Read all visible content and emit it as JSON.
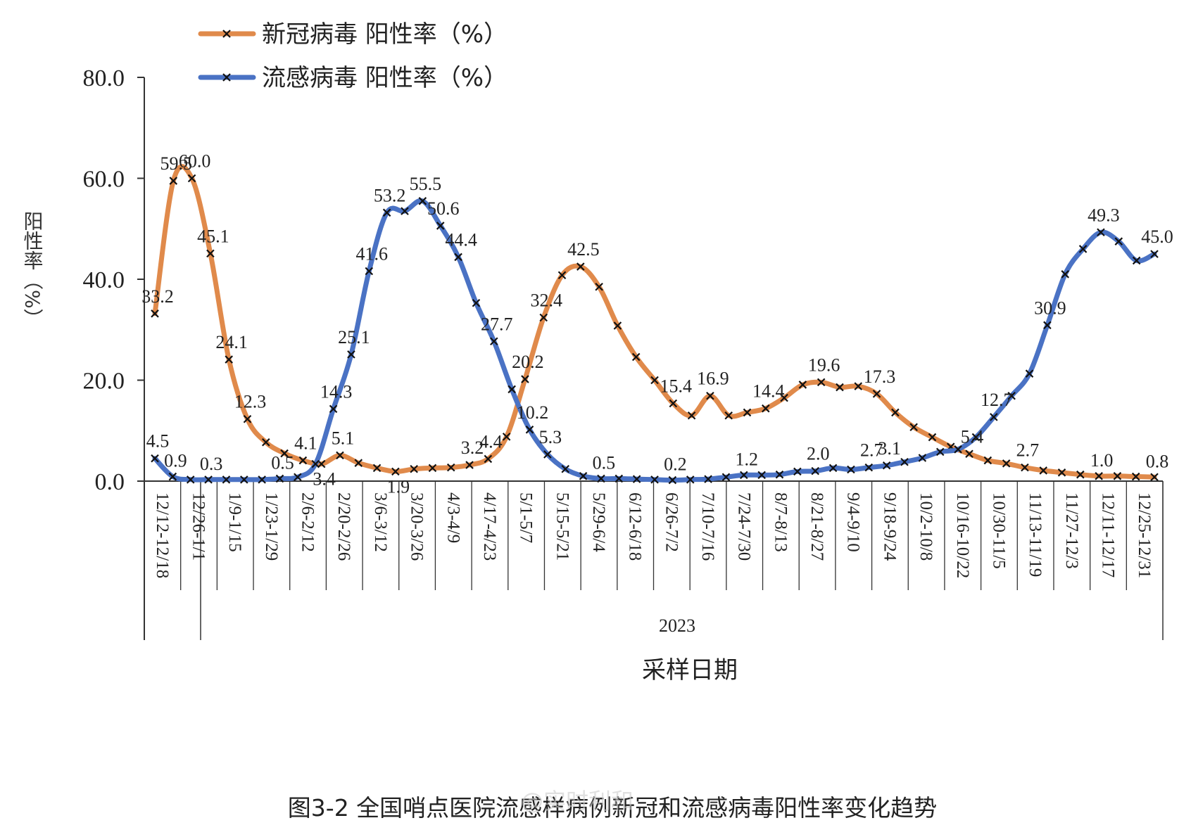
{
  "chart_data": {
    "type": "line",
    "title": "",
    "xlabel": "采样日期",
    "ylabel": "阳性率（%）",
    "year_label": "2023",
    "ylim": [
      0,
      80
    ],
    "yticks": [
      "0.0",
      "20.0",
      "40.0",
      "60.0",
      "80.0"
    ],
    "grid": false,
    "legend_position": "top-left",
    "x_tick_labels": [
      "12/12-12/18",
      "12/26-1/1",
      "1/9-1/15",
      "1/23-1/29",
      "2/6-2/12",
      "2/20-2/26",
      "3/6-3/12",
      "3/20-3/26",
      "4/3-4/9",
      "4/17-4/23",
      "5/1-5/7",
      "5/15-5/21",
      "5/29-6/4",
      "6/12-6/18",
      "6/26-7/2",
      "7/10-7/16",
      "7/24-7/30",
      "8/7-8/13",
      "8/21-8/27",
      "9/4-9/10",
      "9/18-9/24",
      "10/2-10/8",
      "10/16-10/22",
      "10/30-11/5",
      "11/13-11/19",
      "11/27-12/3",
      "12/11-12/17",
      "12/25-12/31"
    ],
    "series": [
      {
        "name": "新冠病毒 阳性率（%）",
        "color": "#E08A4B",
        "values": [
          33.2,
          59.5,
          60.0,
          45.1,
          24.1,
          12.3,
          7.7,
          5.5,
          4.1,
          3.4,
          5.1,
          3.6,
          2.6,
          1.9,
          2.4,
          2.6,
          2.7,
          3.2,
          4.4,
          8.8,
          20.2,
          32.4,
          40.8,
          42.5,
          38.5,
          30.8,
          24.6,
          20.0,
          15.4,
          13.0,
          16.9,
          13.0,
          13.6,
          14.4,
          16.5,
          19.1,
          19.6,
          18.6,
          18.8,
          17.3,
          13.6,
          10.7,
          8.7,
          6.8,
          5.4,
          4.1,
          3.5,
          2.7,
          2.1,
          1.7,
          1.3,
          1.0,
          1.0,
          0.9,
          0.8
        ],
        "labels": [
          {
            "i": 0,
            "text": "33.2"
          },
          {
            "i": 1,
            "text": "59.5"
          },
          {
            "i": 2,
            "text": "60.0"
          },
          {
            "i": 3,
            "text": "45.1"
          },
          {
            "i": 4,
            "text": "24.1"
          },
          {
            "i": 5,
            "text": "12.3"
          },
          {
            "i": 8,
            "text": "4.1"
          },
          {
            "i": 9,
            "text": "3.4"
          },
          {
            "i": 10,
            "text": "5.1"
          },
          {
            "i": 13,
            "text": "1.9"
          },
          {
            "i": 17,
            "text": "3.2"
          },
          {
            "i": 18,
            "text": "4.4"
          },
          {
            "i": 20,
            "text": "20.2"
          },
          {
            "i": 21,
            "text": "32.4"
          },
          {
            "i": 23,
            "text": "42.5"
          },
          {
            "i": 28,
            "text": "15.4"
          },
          {
            "i": 30,
            "text": "16.9"
          },
          {
            "i": 33,
            "text": "14.4"
          },
          {
            "i": 36,
            "text": "19.6"
          },
          {
            "i": 39,
            "text": "17.3"
          },
          {
            "i": 44,
            "text": "5.4"
          },
          {
            "i": 47,
            "text": "2.7"
          },
          {
            "i": 51,
            "text": "1.0"
          },
          {
            "i": 54,
            "text": "0.8"
          }
        ]
      },
      {
        "name": "流感病毒 阳性率（%）",
        "color": "#4A72C4",
        "values": [
          4.5,
          0.9,
          0.3,
          0.3,
          0.3,
          0.3,
          0.3,
          0.5,
          0.8,
          3.4,
          14.3,
          25.1,
          41.6,
          53.2,
          53.5,
          55.5,
          50.6,
          44.4,
          35.3,
          27.7,
          18.2,
          10.2,
          5.3,
          2.4,
          1.0,
          0.5,
          0.5,
          0.4,
          0.3,
          0.2,
          0.3,
          0.4,
          0.8,
          1.2,
          1.2,
          1.3,
          1.9,
          2.0,
          2.6,
          2.3,
          2.7,
          3.1,
          3.8,
          4.6,
          5.8,
          6.3,
          8.7,
          12.7,
          16.9,
          21.3,
          30.9,
          41.0,
          46.0,
          49.3,
          47.5,
          43.7,
          45.0
        ],
        "labels": [
          {
            "i": 0,
            "text": "4.5"
          },
          {
            "i": 1,
            "text": "0.9"
          },
          {
            "i": 3,
            "text": "0.3"
          },
          {
            "i": 7,
            "text": "0.5"
          },
          {
            "i": 10,
            "text": "14.3"
          },
          {
            "i": 11,
            "text": "25.1"
          },
          {
            "i": 12,
            "text": "41.6"
          },
          {
            "i": 13,
            "text": "53.2"
          },
          {
            "i": 15,
            "text": "55.5"
          },
          {
            "i": 16,
            "text": "50.6"
          },
          {
            "i": 17,
            "text": "44.4"
          },
          {
            "i": 19,
            "text": "27.7"
          },
          {
            "i": 21,
            "text": "10.2"
          },
          {
            "i": 22,
            "text": "5.3"
          },
          {
            "i": 25,
            "text": "0.5"
          },
          {
            "i": 29,
            "text": "0.2"
          },
          {
            "i": 33,
            "text": "1.2"
          },
          {
            "i": 37,
            "text": "2.0"
          },
          {
            "i": 40,
            "text": "2.7"
          },
          {
            "i": 41,
            "text": "3.1"
          },
          {
            "i": 47,
            "text": "12.7"
          },
          {
            "i": 50,
            "text": "30.9"
          },
          {
            "i": 53,
            "text": "49.3"
          },
          {
            "i": 56,
            "text": "45.0"
          }
        ]
      }
    ]
  },
  "caption": "图3-2 全国哨点医院流感样病例新冠和流感病毒阳性率变化趋势",
  "watermark": "@实时利和"
}
